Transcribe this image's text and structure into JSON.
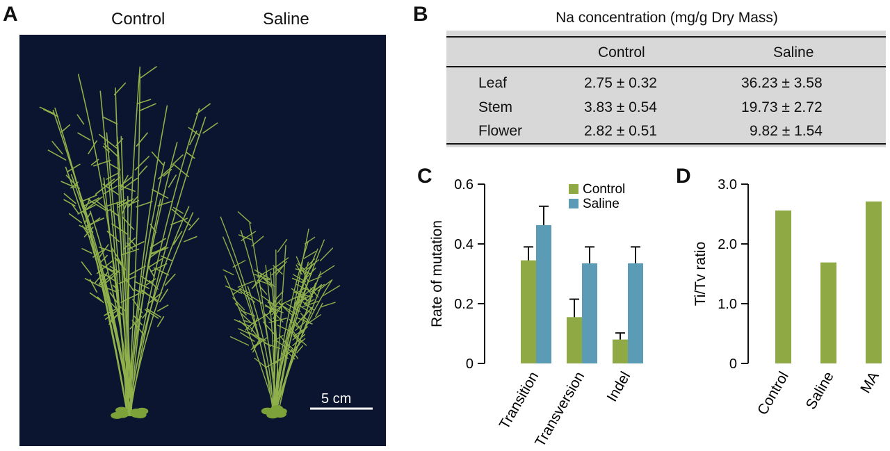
{
  "panels": {
    "a": "A",
    "b": "B",
    "c": "C",
    "d": "D"
  },
  "photo": {
    "labels": [
      "Control",
      "Saline"
    ],
    "scale_bar": "5 cm"
  },
  "table": {
    "title": "Na concentration (mg/g Dry Mass)",
    "columns": [
      "Control",
      "Saline"
    ],
    "rows": [
      {
        "label": "Leaf",
        "values": [
          "2.75 ± 0.32",
          "36.23 ± 3.58"
        ]
      },
      {
        "label": "Stem",
        "values": [
          "3.83 ± 0.54",
          "19.73 ± 2.72"
        ]
      },
      {
        "label": "Flower",
        "values": [
          "2.82 ± 0.51",
          "9.82 ± 1.54"
        ]
      }
    ]
  },
  "colors": {
    "control": "#8faa45",
    "saline": "#5b9bb5",
    "photo_bg": "#0c1530",
    "plant": "#8fb04a"
  },
  "chart_data": [
    {
      "type": "bar",
      "categories": [
        "Transition",
        "Transversion",
        "Indel"
      ],
      "series": [
        {
          "name": "Control",
          "values": [
            0.345,
            0.155,
            0.08
          ],
          "errors": [
            0.045,
            0.06,
            0.022
          ]
        },
        {
          "name": "Saline",
          "values": [
            0.463,
            0.335,
            0.335
          ],
          "errors": [
            0.063,
            0.055,
            0.055
          ]
        }
      ],
      "ylabel": "Rate of mutation",
      "ylim": [
        0,
        0.6
      ],
      "yticks": [
        "0",
        "0.2",
        "0.4",
        "0.6"
      ],
      "legend": "top-right",
      "grid": false
    },
    {
      "type": "bar",
      "categories": [
        "Control",
        "Saline",
        "MA"
      ],
      "values": [
        2.56,
        1.69,
        2.71
      ],
      "ylabel": "Ti/Tv ratio",
      "ylim": [
        0,
        3.0
      ],
      "yticks": [
        "0",
        "1.0",
        "2.0",
        "3.0"
      ],
      "grid": false
    }
  ]
}
